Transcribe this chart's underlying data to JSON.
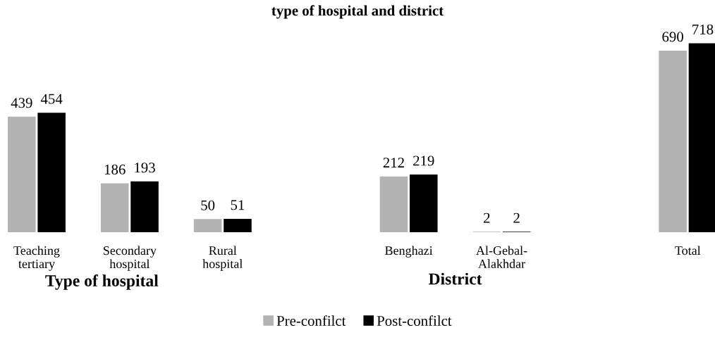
{
  "chart_data": {
    "type": "bar",
    "title": "type of hospital and district",
    "categories": [
      "Teaching\ntertiary",
      "Secondary\nhospital",
      "Rural\nhospital",
      null,
      "Benghazi",
      "Al-Gebal-\nAlakhdar",
      null,
      "Total"
    ],
    "series": [
      {
        "name": "Pre-confilct",
        "color": "#b3b3b3",
        "values": [
          439,
          186,
          50,
          null,
          212,
          2,
          null,
          690
        ]
      },
      {
        "name": "Post-confilct",
        "color": "#000000",
        "values": [
          454,
          193,
          51,
          null,
          219,
          2,
          null,
          718
        ]
      }
    ],
    "data_labels": true,
    "legend": "bottom",
    "grid": false,
    "annotations": [
      "Type of hospital",
      "District"
    ]
  }
}
